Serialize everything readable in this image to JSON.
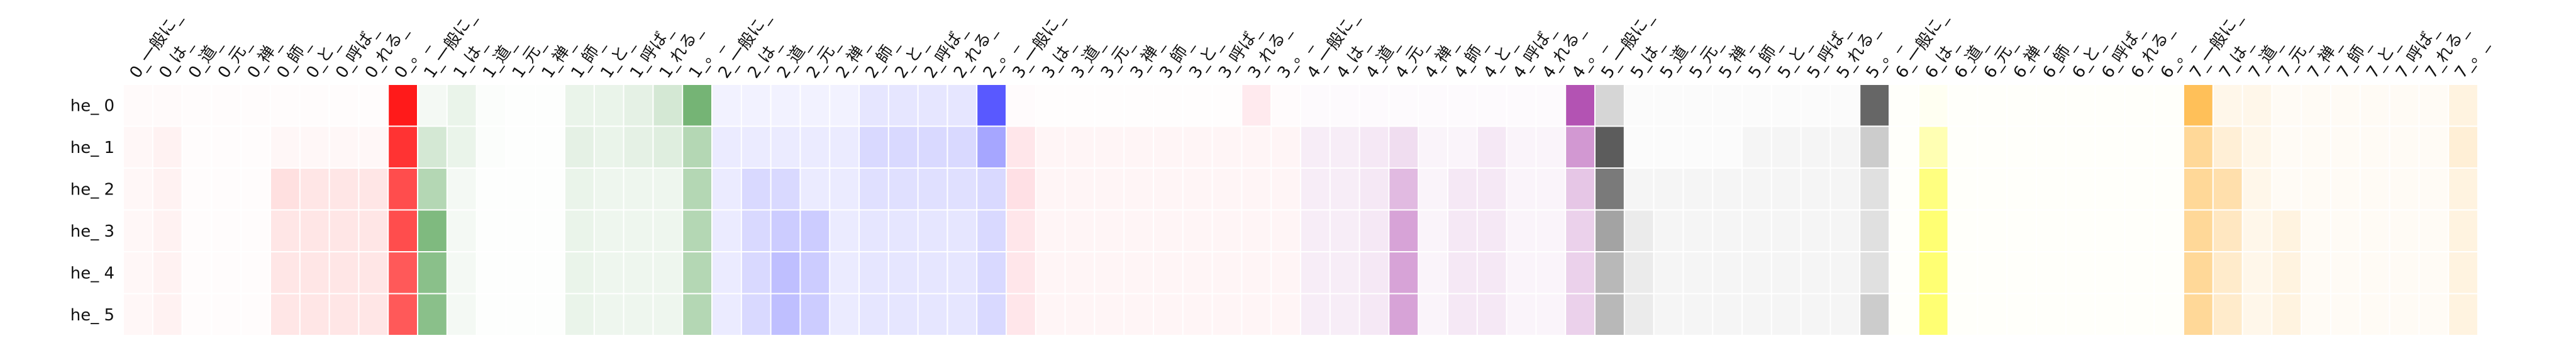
{
  "chart_data": {
    "type": "heatmap",
    "title": "",
    "xlabel": "",
    "ylabel": "",
    "grid": false,
    "x_labels": [
      "0_一般に_",
      "0_は_",
      "0_道_",
      "0_元_",
      "0_禅_",
      "0_師_",
      "0_と_",
      "0_呼ば_",
      "0_れる_",
      "0_。_",
      "1_一般に_",
      "1_は_",
      "1_道_",
      "1_元_",
      "1_禅_",
      "1_師_",
      "1_と_",
      "1_呼ば_",
      "1_れる_",
      "1_。_",
      "2_一般に_",
      "2_は_",
      "2_道_",
      "2_元_",
      "2_禅_",
      "2_師_",
      "2_と_",
      "2_呼ば_",
      "2_れる_",
      "2_。_",
      "3_一般に_",
      "3_は_",
      "3_道_",
      "3_元_",
      "3_禅_",
      "3_師_",
      "3_と_",
      "3_呼ば_",
      "3_れる_",
      "3_。_",
      "4_一般に_",
      "4_は_",
      "4_道_",
      "4_元_",
      "4_禅_",
      "4_師_",
      "4_と_",
      "4_呼ば_",
      "4_れる_",
      "4_。_",
      "5_一般に_",
      "5_は_",
      "5_道_",
      "5_元_",
      "5_禅_",
      "5_師_",
      "5_と_",
      "5_呼ば_",
      "5_れる_",
      "5_。_",
      "6_一般に_",
      "6_は_",
      "6_道_",
      "6_元_",
      "6_禅_",
      "6_師_",
      "6_と_",
      "6_呼ば_",
      "6_れる_",
      "6_。_",
      "7_一般に_",
      "7_は_",
      "7_道_",
      "7_元_",
      "7_禅_",
      "7_師_",
      "7_と_",
      "7_呼ば_",
      "7_れる_",
      "7_。_"
    ],
    "x_label_display": [
      "0_一般に_",
      "0_は_",
      "0_道_",
      "0_元_",
      "0_禅_",
      "0_師_",
      "0_と_",
      "0_呼ば_",
      "0_れる_",
      "0_。_",
      "1_一般に_",
      "1_は_",
      "1_道_",
      "1_元_",
      "1_禅_",
      "1_師_",
      "1_と_",
      "1_呼ば_",
      "1_れる_",
      "1_。_",
      "2_一般に_",
      "2_は_",
      "2_道_",
      "2_元_",
      "2_禅_",
      "2_師_",
      "2_と_",
      "2_呼ば_",
      "2_れる_",
      "2_。_",
      "3_一般に_",
      "3_は_",
      "3_道_",
      "3_元_",
      "3_禅_",
      "3_師_",
      "3_と_",
      "3_呼ば_",
      "3_れる_",
      "3_。_",
      "4_一般に_",
      "4_は_",
      "4_道_",
      "4_元_",
      "4_禅_",
      "4_師_",
      "4_と_",
      "4_呼ば_",
      "4_れる_",
      "4_。_",
      "5_一般に_",
      "5_は_",
      "5_道_",
      "5_元_",
      "5_禅_",
      "5_師_",
      "5_と_",
      "5_呼ば_",
      "5_れる_",
      "5_。_",
      "6_一般に_",
      "6_は_",
      "6_道_",
      "6_元_",
      "6_禅_",
      "6_師_",
      "6_と_",
      "6_呼ば_",
      "6_れる_",
      "6_。_",
      "7_一般に_",
      "7_は_",
      "7_道_",
      "7_元_",
      "7_禅_",
      "7_師_",
      "7_と_",
      "7_呼ば_",
      "7_れる_",
      "7_。_"
    ],
    "y_labels": [
      "he_0",
      "he_1",
      "he_2",
      "he_3",
      "he_4",
      "he_5"
    ],
    "y_label_display": [
      "he_ 0",
      "he_ 1",
      "he_ 2",
      "he_ 3",
      "he_ 4",
      "he_ 5"
    ],
    "group_colors": [
      "#ff0000",
      "#2a8c2a",
      "#0000ff",
      "#ff3050",
      "#9a1a9a",
      "#333333",
      "#ffff00",
      "#ffb030"
    ],
    "values": [
      [
        0.02,
        0.02,
        0.01,
        0.01,
        0.01,
        0.01,
        0.01,
        0.01,
        0.01,
        0.9,
        0.05,
        0.1,
        0.02,
        0.01,
        0.01,
        0.1,
        0.1,
        0.12,
        0.2,
        0.65,
        0.05,
        0.05,
        0.05,
        0.05,
        0.05,
        0.1,
        0.1,
        0.1,
        0.1,
        0.65,
        0.02,
        0.01,
        0.01,
        0.01,
        0.01,
        0.01,
        0.01,
        0.01,
        0.1,
        0.02,
        0.02,
        0.02,
        0.02,
        0.02,
        0.02,
        0.02,
        0.02,
        0.02,
        0.02,
        0.75,
        0.2,
        0.02,
        0.02,
        0.02,
        0.02,
        0.02,
        0.02,
        0.02,
        0.02,
        0.75,
        0.02,
        0.05,
        0.02,
        0.02,
        0.02,
        0.02,
        0.02,
        0.02,
        0.02,
        0.02,
        0.8,
        0.1,
        0.1,
        0.05,
        0.05,
        0.05,
        0.05,
        0.05,
        0.05,
        0.15
      ],
      [
        0.03,
        0.05,
        0.01,
        0.01,
        0.01,
        0.03,
        0.03,
        0.03,
        0.03,
        0.8,
        0.2,
        0.1,
        0.02,
        0.01,
        0.01,
        0.12,
        0.1,
        0.12,
        0.15,
        0.35,
        0.08,
        0.08,
        0.08,
        0.08,
        0.08,
        0.15,
        0.15,
        0.15,
        0.15,
        0.35,
        0.12,
        0.05,
        0.05,
        0.05,
        0.05,
        0.05,
        0.05,
        0.05,
        0.05,
        0.05,
        0.08,
        0.08,
        0.1,
        0.15,
        0.05,
        0.05,
        0.1,
        0.05,
        0.05,
        0.45,
        0.8,
        0.02,
        0.02,
        0.02,
        0.02,
        0.05,
        0.05,
        0.05,
        0.05,
        0.25,
        0.02,
        0.3,
        0.02,
        0.02,
        0.02,
        0.02,
        0.02,
        0.02,
        0.02,
        0.02,
        0.5,
        0.2,
        0.1,
        0.05,
        0.05,
        0.05,
        0.05,
        0.05,
        0.05,
        0.2
      ],
      [
        0.03,
        0.05,
        0.01,
        0.01,
        0.01,
        0.12,
        0.1,
        0.1,
        0.1,
        0.7,
        0.35,
        0.05,
        0.01,
        0.01,
        0.01,
        0.1,
        0.08,
        0.08,
        0.08,
        0.35,
        0.08,
        0.15,
        0.15,
        0.08,
        0.08,
        0.12,
        0.12,
        0.12,
        0.12,
        0.15,
        0.15,
        0.05,
        0.05,
        0.05,
        0.05,
        0.05,
        0.05,
        0.05,
        0.05,
        0.05,
        0.08,
        0.08,
        0.1,
        0.3,
        0.05,
        0.1,
        0.1,
        0.05,
        0.05,
        0.25,
        0.65,
        0.05,
        0.05,
        0.05,
        0.05,
        0.05,
        0.05,
        0.05,
        0.05,
        0.15,
        0.02,
        0.5,
        0.02,
        0.02,
        0.02,
        0.02,
        0.02,
        0.02,
        0.02,
        0.02,
        0.5,
        0.4,
        0.1,
        0.05,
        0.05,
        0.05,
        0.05,
        0.05,
        0.05,
        0.15
      ],
      [
        0.03,
        0.05,
        0.01,
        0.01,
        0.01,
        0.1,
        0.1,
        0.1,
        0.1,
        0.7,
        0.6,
        0.05,
        0.01,
        0.01,
        0.01,
        0.1,
        0.08,
        0.08,
        0.08,
        0.35,
        0.08,
        0.15,
        0.2,
        0.2,
        0.08,
        0.1,
        0.1,
        0.1,
        0.1,
        0.15,
        0.12,
        0.05,
        0.05,
        0.05,
        0.05,
        0.05,
        0.05,
        0.05,
        0.05,
        0.05,
        0.08,
        0.08,
        0.1,
        0.4,
        0.05,
        0.1,
        0.1,
        0.05,
        0.05,
        0.2,
        0.45,
        0.1,
        0.05,
        0.05,
        0.05,
        0.05,
        0.05,
        0.05,
        0.05,
        0.15,
        0.02,
        0.55,
        0.02,
        0.02,
        0.02,
        0.02,
        0.02,
        0.02,
        0.02,
        0.02,
        0.5,
        0.3,
        0.1,
        0.15,
        0.05,
        0.05,
        0.05,
        0.05,
        0.05,
        0.15
      ],
      [
        0.03,
        0.05,
        0.01,
        0.01,
        0.01,
        0.1,
        0.1,
        0.1,
        0.1,
        0.65,
        0.55,
        0.05,
        0.01,
        0.01,
        0.01,
        0.1,
        0.08,
        0.08,
        0.08,
        0.35,
        0.08,
        0.15,
        0.25,
        0.2,
        0.08,
        0.1,
        0.1,
        0.1,
        0.1,
        0.15,
        0.12,
        0.05,
        0.05,
        0.05,
        0.05,
        0.05,
        0.05,
        0.05,
        0.05,
        0.05,
        0.08,
        0.08,
        0.1,
        0.4,
        0.05,
        0.1,
        0.1,
        0.05,
        0.05,
        0.2,
        0.35,
        0.1,
        0.05,
        0.05,
        0.05,
        0.05,
        0.05,
        0.05,
        0.05,
        0.15,
        0.02,
        0.55,
        0.02,
        0.02,
        0.02,
        0.02,
        0.02,
        0.02,
        0.02,
        0.02,
        0.5,
        0.25,
        0.1,
        0.15,
        0.05,
        0.05,
        0.05,
        0.05,
        0.05,
        0.15
      ],
      [
        0.03,
        0.05,
        0.01,
        0.01,
        0.01,
        0.1,
        0.1,
        0.1,
        0.1,
        0.65,
        0.55,
        0.05,
        0.01,
        0.01,
        0.01,
        0.1,
        0.08,
        0.08,
        0.08,
        0.35,
        0.08,
        0.15,
        0.25,
        0.2,
        0.08,
        0.1,
        0.1,
        0.1,
        0.1,
        0.15,
        0.12,
        0.05,
        0.05,
        0.05,
        0.05,
        0.05,
        0.05,
        0.05,
        0.05,
        0.05,
        0.08,
        0.08,
        0.1,
        0.4,
        0.05,
        0.1,
        0.1,
        0.05,
        0.05,
        0.2,
        0.35,
        0.1,
        0.05,
        0.05,
        0.05,
        0.05,
        0.05,
        0.05,
        0.05,
        0.25,
        0.02,
        0.55,
        0.02,
        0.02,
        0.02,
        0.02,
        0.02,
        0.02,
        0.02,
        0.02,
        0.5,
        0.25,
        0.1,
        0.15,
        0.05,
        0.05,
        0.05,
        0.05,
        0.05,
        0.15
      ]
    ]
  }
}
